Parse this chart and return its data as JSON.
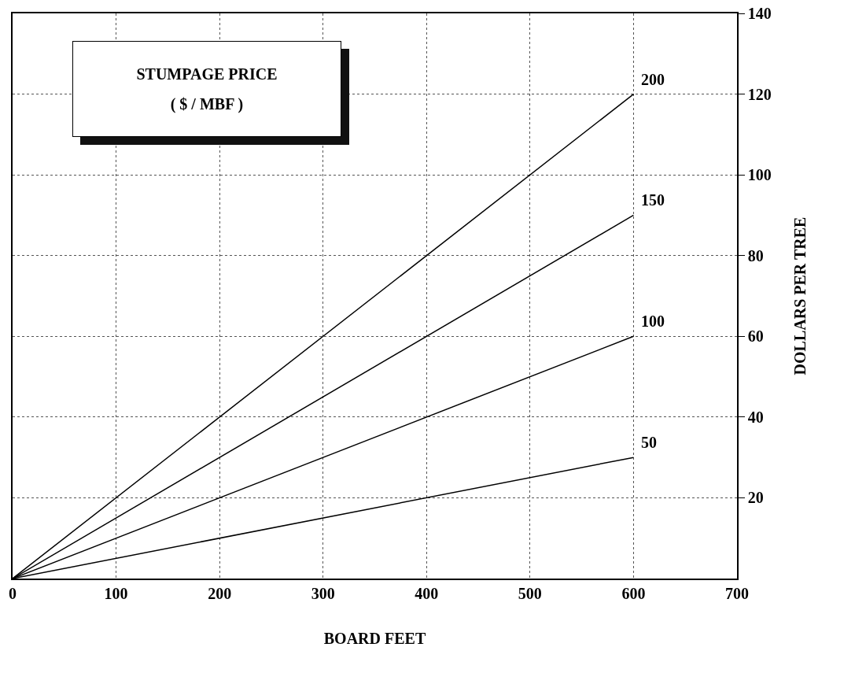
{
  "chart_data": {
    "type": "line",
    "legend_title": "STUMPAGE PRICE\n( $ / MBF )",
    "xlabel": "BOARD FEET",
    "ylabel": "DOLLARS PER TREE",
    "x": [
      0,
      600
    ],
    "series": [
      {
        "name": "200",
        "color": "#000000",
        "values": [
          0,
          120
        ]
      },
      {
        "name": "150",
        "color": "#000000",
        "values": [
          0,
          90
        ]
      },
      {
        "name": "100",
        "color": "#000000",
        "values": [
          0,
          60
        ]
      },
      {
        "name": "50",
        "color": "#000000",
        "values": [
          0,
          30
        ]
      }
    ],
    "xlim": [
      0,
      700
    ],
    "xticks": [
      0,
      100,
      200,
      300,
      400,
      500,
      600,
      700
    ],
    "ylim": [
      0,
      140
    ],
    "yticks": [
      20,
      40,
      60,
      80,
      100,
      120,
      140
    ],
    "grid": true,
    "legend": false,
    "marker": "none",
    "line_style": "solid"
  }
}
